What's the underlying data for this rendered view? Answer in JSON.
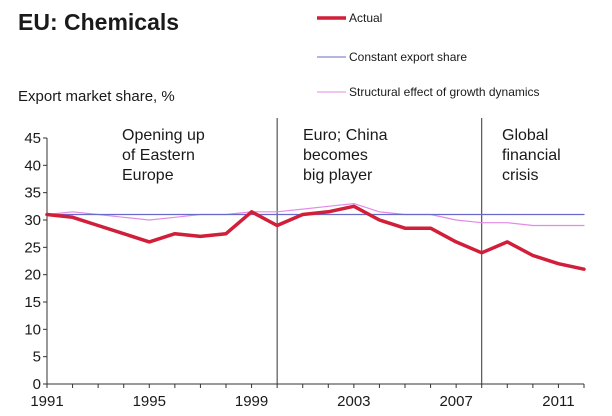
{
  "chart_data": {
    "type": "line",
    "title": "EU: Chemicals",
    "ylabel": "Export market share, %",
    "xlabel": "",
    "ylim": [
      0,
      45
    ],
    "xlim": [
      1991,
      2012
    ],
    "yticks": [
      "0",
      "5",
      "10",
      "15",
      "20",
      "25",
      "30",
      "35",
      "40",
      "45"
    ],
    "xticks": [
      "1991",
      "1995",
      "1999",
      "2003",
      "2007",
      "2011"
    ],
    "grid": false,
    "legend_position": "top-right",
    "series": [
      {
        "name": "Actual",
        "color": "#d11f3a",
        "x": [
          1991,
          1992,
          1993,
          1994,
          1995,
          1996,
          1997,
          1998,
          1999,
          2000,
          2001,
          2002,
          2003,
          2004,
          2005,
          2006,
          2007,
          2008,
          2009,
          2010,
          2011,
          2012
        ],
        "values": [
          31,
          30.5,
          29,
          27.5,
          26,
          27.5,
          27,
          27.5,
          31.5,
          29,
          31,
          31.5,
          32.5,
          30,
          28.5,
          28.5,
          26,
          24,
          26,
          23.5,
          22,
          21
        ]
      },
      {
        "name": "Constant export share",
        "color": "#6a6acb",
        "x": [
          1991,
          1992,
          1993,
          1994,
          1995,
          1996,
          1997,
          1998,
          1999,
          2000,
          2001,
          2002,
          2003,
          2004,
          2005,
          2006,
          2007,
          2008,
          2009,
          2010,
          2011,
          2012
        ],
        "values": [
          31,
          31,
          31,
          31,
          31,
          31,
          31,
          31,
          31,
          31,
          31,
          31,
          31,
          31,
          31,
          31,
          31,
          31,
          31,
          31,
          31,
          31
        ]
      },
      {
        "name": "Structural effect of growth dynamics",
        "color": "#e28be4",
        "x": [
          1991,
          1992,
          1993,
          1994,
          1995,
          1996,
          1997,
          1998,
          1999,
          2000,
          2001,
          2002,
          2003,
          2004,
          2005,
          2006,
          2007,
          2008,
          2009,
          2010,
          2011,
          2012
        ],
        "values": [
          31,
          31.5,
          31,
          30.5,
          30,
          30.5,
          31,
          31,
          31.5,
          31.5,
          32,
          32.5,
          33,
          31.5,
          31,
          31,
          30,
          29.5,
          29.5,
          29,
          29,
          29
        ]
      }
    ],
    "annotations": [
      {
        "lines": [
          "Opening up",
          "of Eastern",
          "Europe"
        ]
      },
      {
        "lines": [
          "Euro; China",
          "becomes",
          "big player"
        ]
      },
      {
        "lines": [
          "Global",
          "financial",
          "crisis"
        ]
      }
    ],
    "dividers": [
      2000,
      2008
    ]
  }
}
